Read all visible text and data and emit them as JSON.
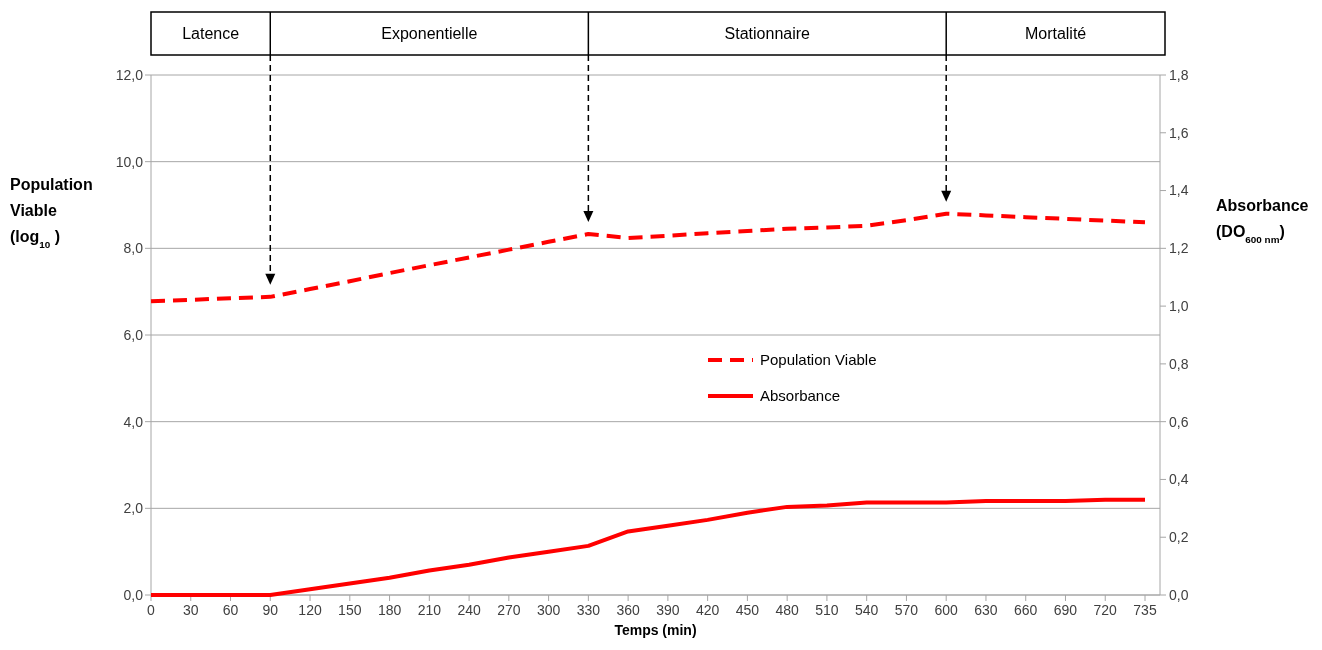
{
  "chart_data": {
    "type": "line",
    "xlabel": "Temps (min)",
    "ylabel": "Population Viable (log$_{10}$ )",
    "y2label": "Absorbance (DO$_{600 nm}$)",
    "categories": [
      "0",
      "30",
      "60",
      "90",
      "120",
      "150",
      "180",
      "210",
      "240",
      "270",
      "300",
      "330",
      "360",
      "390",
      "420",
      "450",
      "480",
      "510",
      "540",
      "570",
      "600",
      "630",
      "660",
      "690",
      "720",
      "735"
    ],
    "series": [
      {
        "name": "Population Viable",
        "color": "#ff0000",
        "line_style": "dashed",
        "values": [
          6.78,
          6.81,
          6.85,
          6.88,
          7.06,
          7.24,
          7.43,
          7.61,
          7.79,
          7.97,
          8.15,
          8.33,
          8.24,
          8.29,
          8.35,
          8.4,
          8.45,
          8.48,
          8.52,
          8.65,
          8.8,
          8.76,
          8.72,
          8.68,
          8.64,
          8.6
        ]
      },
      {
        "name": "Absorbance",
        "color": "#ff0000",
        "line_style": "solid",
        "axis": "y2",
        "values": [
          0,
          0,
          0,
          0,
          0.02,
          0.04,
          0.06,
          0.085,
          0.105,
          0.13,
          0.15,
          0.17,
          0.22,
          0.24,
          0.26,
          0.285,
          0.305,
          0.31,
          0.32,
          0.32,
          0.32,
          0.325,
          0.325,
          0.325,
          0.33,
          0.33
        ]
      }
    ],
    "ylim": [
      0,
      12
    ],
    "yticks": [
      {
        "value": 0,
        "label": "0,0"
      },
      {
        "value": 2,
        "label": "2,0"
      },
      {
        "value": 4,
        "label": "4,0"
      },
      {
        "value": 6,
        "label": "6,0"
      },
      {
        "value": 8,
        "label": "8,0"
      },
      {
        "value": 10,
        "label": "10,0"
      },
      {
        "value": 12,
        "label": "12,0"
      }
    ],
    "y2lim": [
      0,
      1.8
    ],
    "y2ticks": [
      {
        "value": 0,
        "label": "0,0"
      },
      {
        "value": 0.2,
        "label": "0,2"
      },
      {
        "value": 0.4,
        "label": "0,4"
      },
      {
        "value": 0.6,
        "label": "0,6"
      },
      {
        "value": 0.8,
        "label": "0,8"
      },
      {
        "value": 1,
        "label": "1,0"
      },
      {
        "value": 1.2,
        "label": "1,2"
      },
      {
        "value": 1.4,
        "label": "1,4"
      },
      {
        "value": 1.6,
        "label": "1,6"
      },
      {
        "value": 1.8,
        "label": "1,8"
      }
    ],
    "annotations": [
      "Latence",
      "Exponentielle",
      "Stationnaire",
      "Mortalité"
    ],
    "ref_lines": [
      {
        "axis": "x",
        "value": "90",
        "color": "#000000",
        "line_style": "dashed"
      },
      {
        "axis": "x",
        "value": "330",
        "color": "#000000",
        "line_style": "dashed"
      },
      {
        "axis": "x",
        "value": "600",
        "color": "#000000",
        "line_style": "dashed"
      }
    ],
    "grid": "y",
    "legend": "center"
  }
}
